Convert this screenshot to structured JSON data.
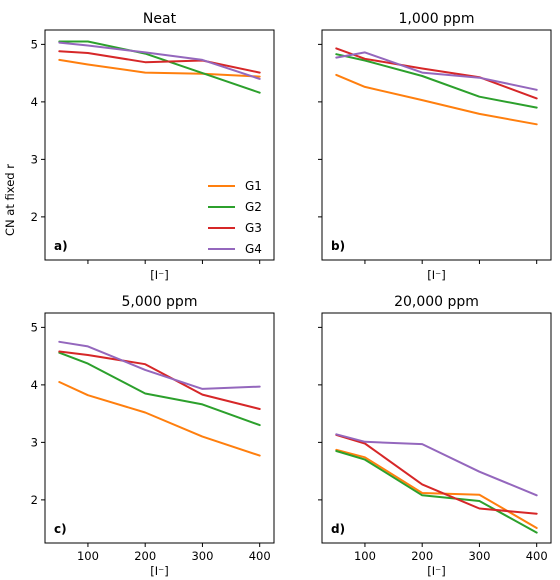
{
  "chart_data": [
    {
      "type": "line",
      "title": "Neat",
      "panel_label": "a)",
      "xlabel": "[I⁻]",
      "ylabel": "CN at fixed r",
      "x": [
        50,
        100,
        200,
        300,
        400
      ],
      "xlim": [
        25,
        425
      ],
      "ylim": [
        1.25,
        5.25
      ],
      "yticks": [
        2,
        3,
        4,
        5
      ],
      "xticks": [
        100,
        200,
        300,
        400
      ],
      "xticklabels_visible": false,
      "yticklabels_visible": true,
      "legend": "center-right",
      "series": [
        {
          "name": "G1",
          "color": "#ff7f0e",
          "values": [
            4.73,
            4.65,
            4.51,
            4.49,
            4.44
          ]
        },
        {
          "name": "G2",
          "color": "#2ca02c",
          "values": [
            5.05,
            5.05,
            4.84,
            4.5,
            4.16
          ]
        },
        {
          "name": "G3",
          "color": "#d62728",
          "values": [
            4.88,
            4.85,
            4.69,
            4.72,
            4.51
          ]
        },
        {
          "name": "G4",
          "color": "#9467bd",
          "values": [
            5.03,
            4.98,
            4.86,
            4.73,
            4.4
          ]
        }
      ]
    },
    {
      "type": "line",
      "title": "1,000 ppm",
      "panel_label": "b)",
      "xlabel": "[I⁻]",
      "ylabel": "",
      "x": [
        50,
        100,
        200,
        300,
        400
      ],
      "xlim": [
        25,
        425
      ],
      "ylim": [
        1.25,
        5.25
      ],
      "yticks": [
        2,
        3,
        4,
        5
      ],
      "xticks": [
        100,
        200,
        300,
        400
      ],
      "xticklabels_visible": false,
      "yticklabels_visible": false,
      "series": [
        {
          "name": "G1",
          "color": "#ff7f0e",
          "values": [
            4.47,
            4.26,
            4.03,
            3.79,
            3.61
          ]
        },
        {
          "name": "G2",
          "color": "#2ca02c",
          "values": [
            4.83,
            4.72,
            4.45,
            4.09,
            3.9
          ]
        },
        {
          "name": "G3",
          "color": "#d62728",
          "values": [
            4.93,
            4.75,
            4.58,
            4.43,
            4.06
          ]
        },
        {
          "name": "G4",
          "color": "#9467bd",
          "values": [
            4.77,
            4.86,
            4.51,
            4.42,
            4.21
          ]
        }
      ]
    },
    {
      "type": "line",
      "title": "5,000 ppm",
      "panel_label": "c)",
      "xlabel": "[I⁻]",
      "ylabel": "",
      "x": [
        50,
        100,
        200,
        300,
        400
      ],
      "xlim": [
        25,
        425
      ],
      "ylim": [
        1.25,
        5.25
      ],
      "yticks": [
        2,
        3,
        4,
        5
      ],
      "xticks": [
        100,
        200,
        300,
        400
      ],
      "xticklabels_visible": true,
      "yticklabels_visible": true,
      "series": [
        {
          "name": "G1",
          "color": "#ff7f0e",
          "values": [
            4.05,
            3.82,
            3.52,
            3.1,
            2.77
          ]
        },
        {
          "name": "G2",
          "color": "#2ca02c",
          "values": [
            4.56,
            4.37,
            3.85,
            3.66,
            3.3
          ]
        },
        {
          "name": "G3",
          "color": "#d62728",
          "values": [
            4.58,
            4.52,
            4.36,
            3.83,
            3.58
          ]
        },
        {
          "name": "G4",
          "color": "#9467bd",
          "values": [
            4.75,
            4.67,
            4.26,
            3.93,
            3.97
          ]
        }
      ]
    },
    {
      "type": "line",
      "title": "20,000 ppm",
      "panel_label": "d)",
      "xlabel": "[I⁻]",
      "ylabel": "",
      "x": [
        50,
        100,
        200,
        300,
        400
      ],
      "xlim": [
        25,
        425
      ],
      "ylim": [
        1.25,
        5.25
      ],
      "yticks": [
        2,
        3,
        4,
        5
      ],
      "xticks": [
        100,
        200,
        300,
        400
      ],
      "xticklabels_visible": true,
      "yticklabels_visible": false,
      "series": [
        {
          "name": "G1",
          "color": "#ff7f0e",
          "values": [
            2.87,
            2.74,
            2.12,
            2.09,
            1.51
          ]
        },
        {
          "name": "G2",
          "color": "#2ca02c",
          "values": [
            2.85,
            2.7,
            2.08,
            1.98,
            1.43
          ]
        },
        {
          "name": "G3",
          "color": "#d62728",
          "values": [
            3.13,
            2.98,
            2.27,
            1.85,
            1.76
          ]
        },
        {
          "name": "G4",
          "color": "#9467bd",
          "values": [
            3.14,
            3.01,
            2.97,
            2.49,
            2.08
          ]
        }
      ]
    }
  ]
}
